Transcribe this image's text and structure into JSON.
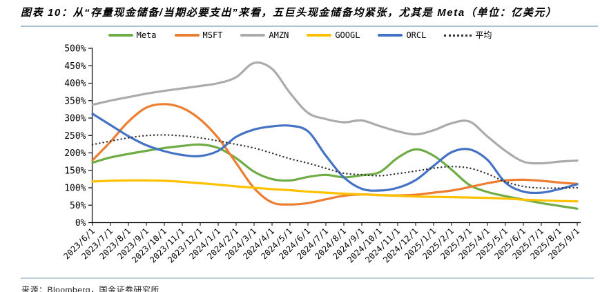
{
  "header": {
    "title": "图表 10：从“存量现金储备/当期必要支出”来看，五巨头现金储备均紧张，尤其是 Meta（单位：亿美元）"
  },
  "footer": {
    "source": "来源：Bloomberg，国金证券研究所"
  },
  "chart_data": {
    "type": "line",
    "title": "",
    "xlabel": "",
    "ylabel": "",
    "ylim": [
      0,
      500
    ],
    "y_tick_step": 50,
    "y_tick_format": "percent",
    "grid": false,
    "legend_position": "top",
    "x": [
      "2023/6/1",
      "2023/7/1",
      "2023/8/1",
      "2023/9/1",
      "2023/10/1",
      "2023/11/1",
      "2023/12/1",
      "2024/1/1",
      "2024/2/1",
      "2024/3/1",
      "2024/4/1",
      "2024/5/1",
      "2024/6/1",
      "2024/7/1",
      "2024/8/1",
      "2024/9/1",
      "2024/10/1",
      "2024/11/1",
      "2024/12/1",
      "2025/1/1",
      "2025/2/1",
      "2025/3/1",
      "2025/4/1",
      "2025/5/1",
      "2025/6/1",
      "2025/7/1",
      "2025/8/1",
      "2025/9/1"
    ],
    "series": [
      {
        "name": "Meta",
        "color": "#6fac46",
        "style": "solid",
        "values": [
          172,
          187,
          197,
          206,
          214,
          220,
          224,
          214,
          185,
          146,
          125,
          121,
          131,
          137,
          130,
          136,
          145,
          186,
          210,
          192,
          152,
          108,
          88,
          76,
          66,
          56,
          48,
          40
        ]
      },
      {
        "name": "MSFT",
        "color": "#ed7d31",
        "style": "solid",
        "values": [
          179,
          232,
          290,
          330,
          340,
          329,
          296,
          243,
          171,
          99,
          58,
          52,
          56,
          67,
          77,
          81,
          79,
          78,
          80,
          86,
          92,
          102,
          113,
          121,
          123,
          120,
          115,
          111
        ]
      },
      {
        "name": "AMZN",
        "color": "#ababab",
        "style": "solid",
        "values": [
          338,
          350,
          360,
          370,
          378,
          385,
          392,
          400,
          417,
          458,
          441,
          372,
          315,
          297,
          288,
          293,
          277,
          262,
          253,
          265,
          285,
          290,
          247,
          206,
          175,
          170,
          175,
          178
        ]
      },
      {
        "name": "GOOGL",
        "color": "#ffc000",
        "style": "solid",
        "values": [
          118,
          120,
          121,
          121,
          120,
          117,
          113,
          109,
          104,
          100,
          96,
          93,
          89,
          86,
          83,
          81,
          79,
          77,
          75,
          74,
          73,
          72,
          71,
          69,
          66,
          64,
          62,
          61
        ]
      },
      {
        "name": "ORCL",
        "color": "#4472c4",
        "style": "solid",
        "values": [
          312,
          280,
          248,
          222,
          205,
          194,
          191,
          206,
          246,
          267,
          276,
          278,
          262,
          192,
          130,
          97,
          92,
          100,
          122,
          163,
          202,
          210,
          180,
          115,
          89,
          86,
          96,
          110
        ]
      },
      {
        "name": "平均",
        "color": "#303030",
        "style": "dotted",
        "values": [
          223.8,
          233.8,
          243.2,
          249.8,
          251.4,
          249.0,
          243.2,
          234.4,
          224.6,
          214.0,
          199.2,
          183.2,
          170.6,
          155.8,
          141.6,
          137.6,
          134.4,
          140.6,
          148.0,
          156.0,
          160.8,
          156.4,
          139.8,
          117.4,
          103.8,
          99.2,
          99.2,
          100.0
        ]
      }
    ]
  }
}
